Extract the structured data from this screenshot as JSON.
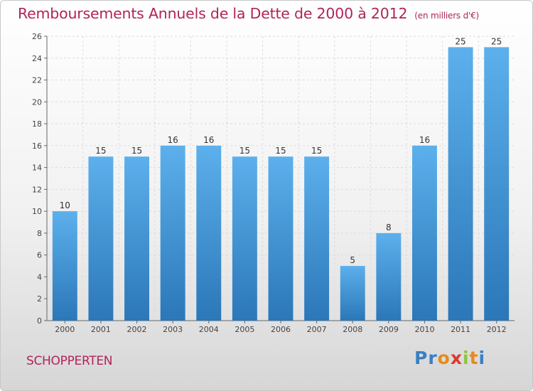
{
  "title": "Remboursements Annuels de la Dette de 2000 à 2012",
  "unit": "(en milliers d'€)",
  "commune": "SCHOPPERTEN",
  "logo": {
    "letters": [
      "P",
      "r",
      "o",
      "x",
      "i",
      "t",
      "i"
    ],
    "colors": [
      "#3a7fc4",
      "#3a7fc4",
      "#e88a1a",
      "#d93a2b",
      "#8cc63e",
      "#e88a1a",
      "#3a7fc4"
    ]
  },
  "colors": {
    "bar": "#4a9fe0",
    "bar_dark": "#2f7fc2",
    "title": "#b0245a"
  },
  "chart_data": {
    "type": "bar",
    "title": "Remboursements Annuels de la Dette de 2000 à 2012",
    "categories": [
      "2000",
      "2001",
      "2002",
      "2003",
      "2004",
      "2005",
      "2006",
      "2007",
      "2008",
      "2009",
      "2010",
      "2011",
      "2012"
    ],
    "values": [
      10,
      15,
      15,
      16,
      16,
      15,
      15,
      15,
      5,
      8,
      16,
      25,
      25
    ],
    "xlabel": "",
    "ylabel": "",
    "ylim": [
      0,
      26
    ],
    "yticks": [
      0,
      2,
      4,
      6,
      8,
      10,
      12,
      14,
      16,
      18,
      20,
      22,
      24,
      26
    ],
    "grid": true,
    "legend": "none"
  }
}
